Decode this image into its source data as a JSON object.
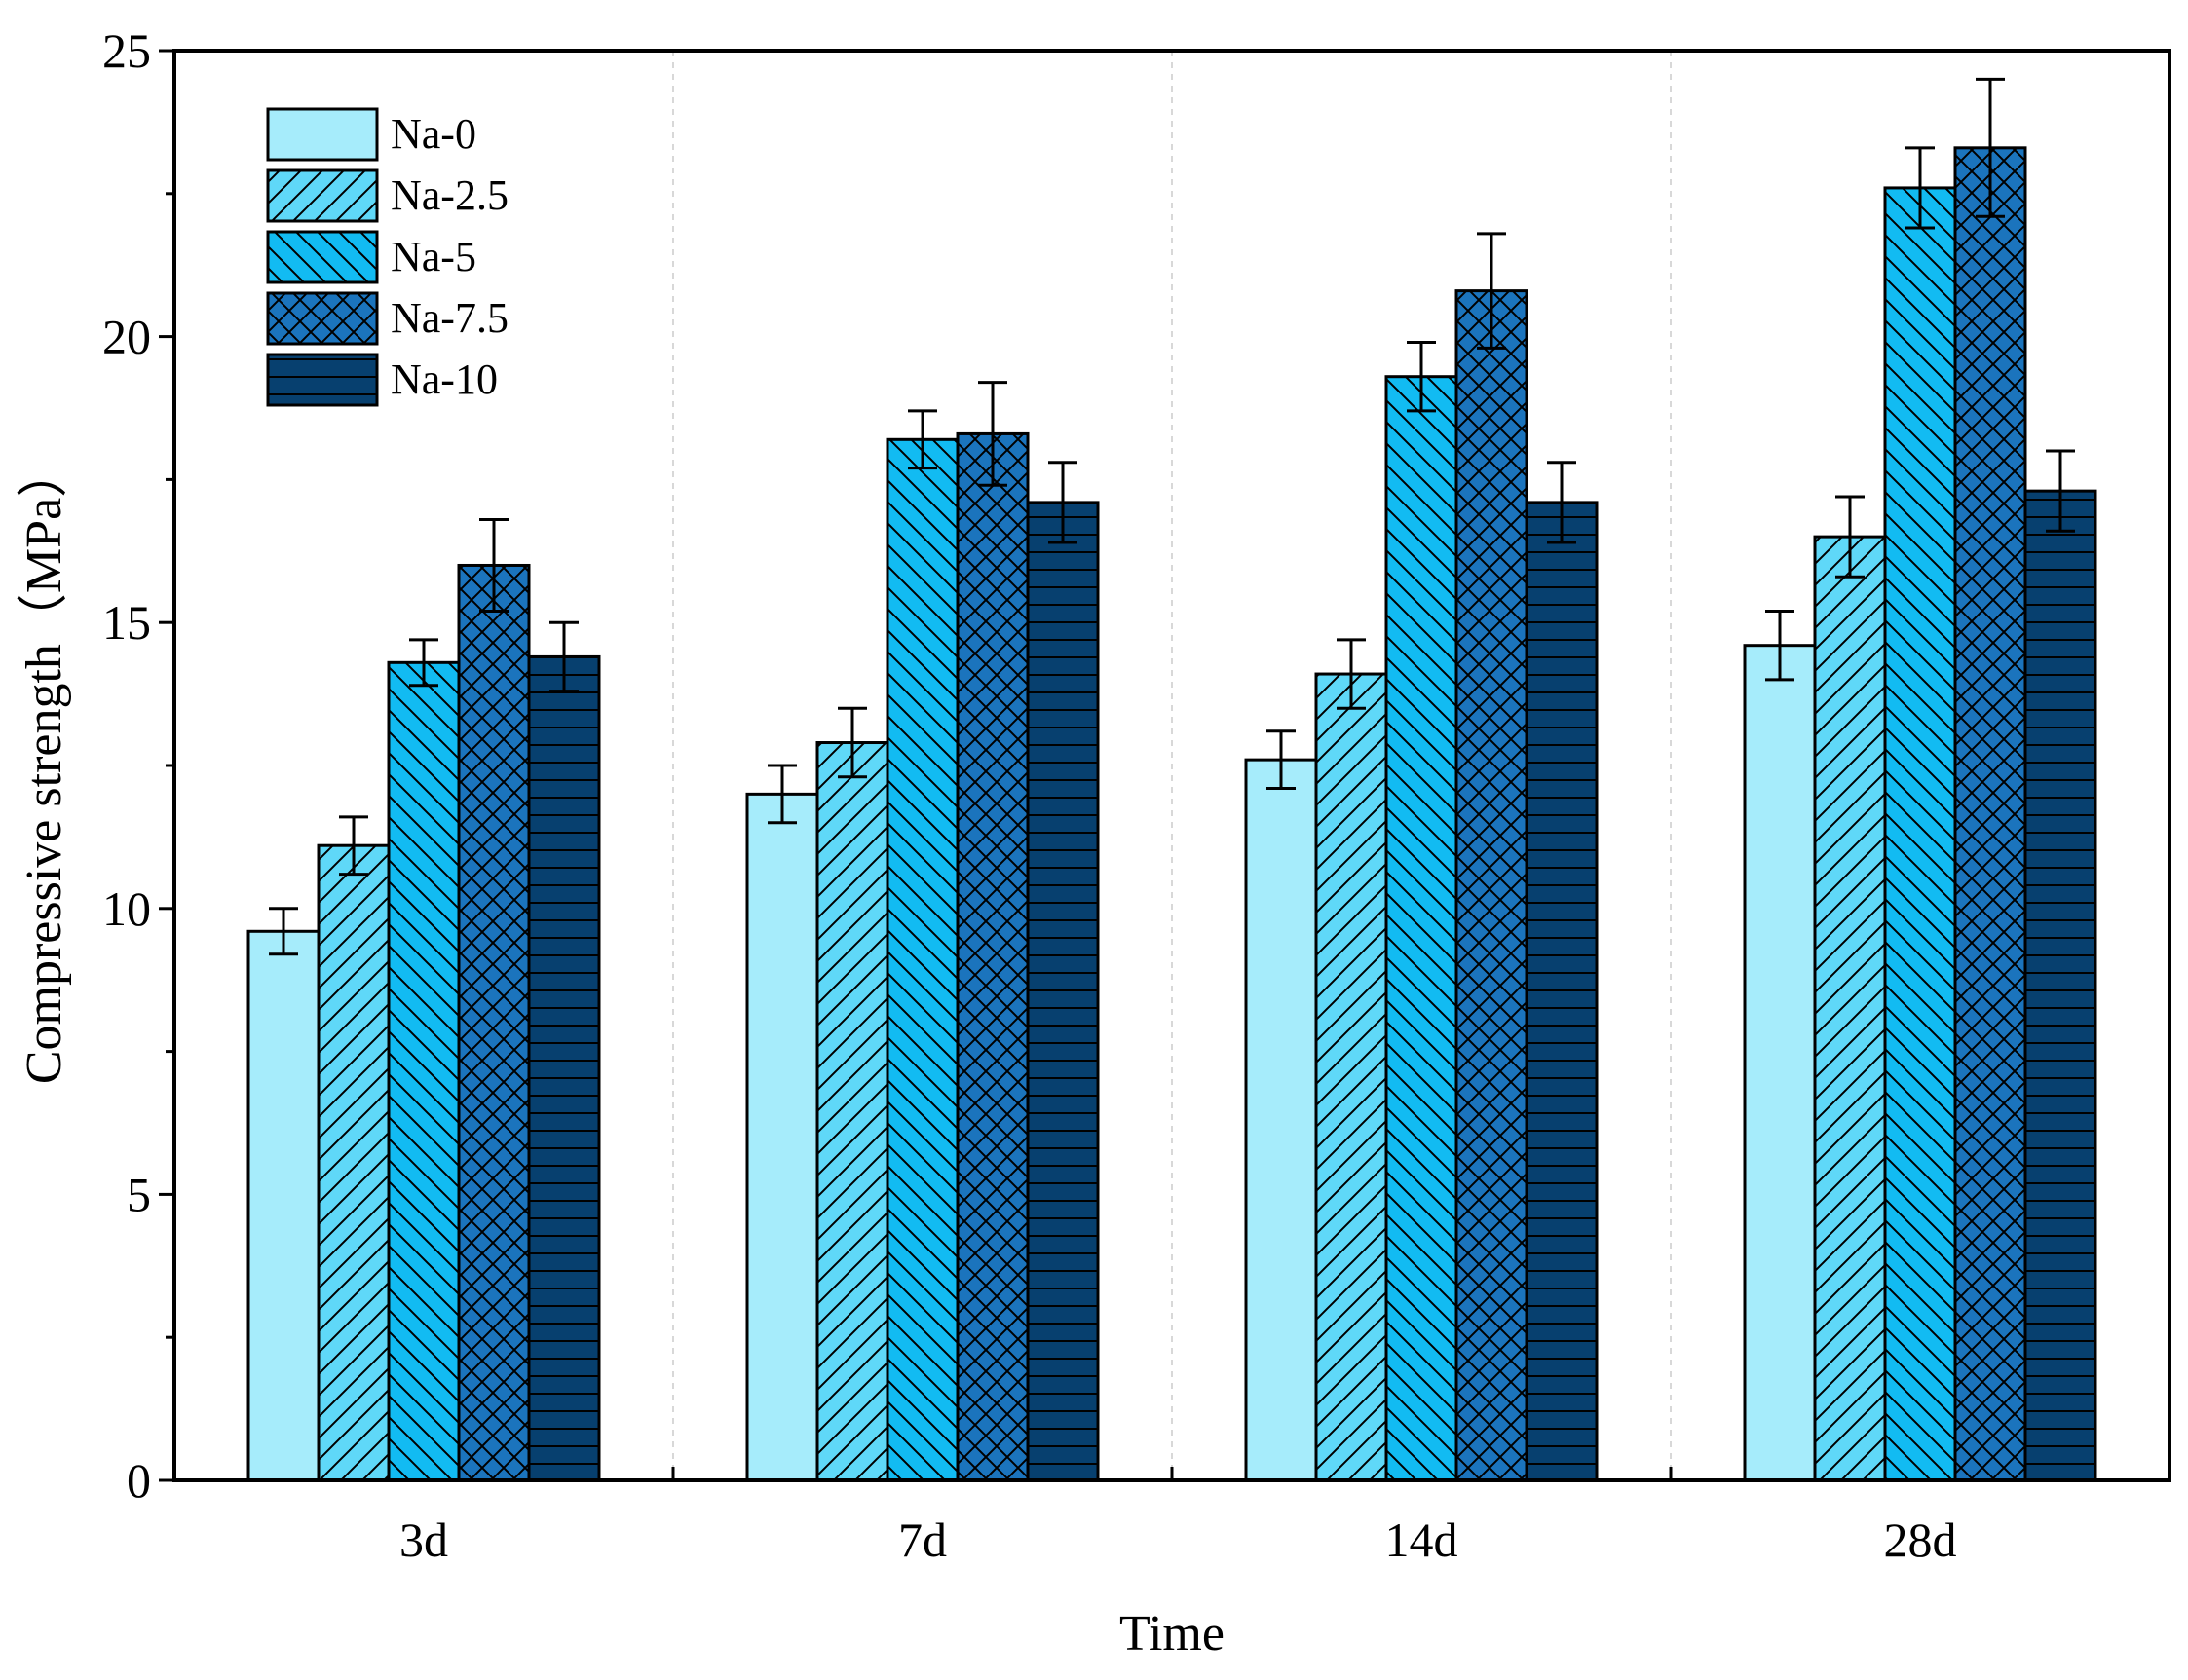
{
  "chart_data": {
    "type": "bar",
    "title": "",
    "xlabel": "Time",
    "ylabel": "Compressive strength（MPa）",
    "categories": [
      "3d",
      "7d",
      "14d",
      "28d"
    ],
    "ylim": [
      0,
      25
    ],
    "yticks": [
      0,
      5,
      10,
      15,
      20,
      25
    ],
    "grid": "vertical dashed separators between groups",
    "legend_position": "top-left",
    "series": [
      {
        "name": "Na-0",
        "values": [
          9.6,
          12.0,
          12.6,
          14.6
        ],
        "errors": [
          0.4,
          0.5,
          0.5,
          0.6
        ],
        "color": "#a6ecfb",
        "pattern": "none"
      },
      {
        "name": "Na-2.5",
        "values": [
          11.1,
          12.9,
          14.1,
          16.5
        ],
        "errors": [
          0.5,
          0.6,
          0.6,
          0.7
        ],
        "color": "#5fd8f8",
        "pattern": "forward-diagonal"
      },
      {
        "name": "Na-5",
        "values": [
          14.3,
          18.2,
          19.3,
          22.6
        ],
        "errors": [
          0.4,
          0.5,
          0.6,
          0.7
        ],
        "color": "#12bbf2",
        "pattern": "back-diagonal"
      },
      {
        "name": "Na-7.5",
        "values": [
          16.0,
          18.3,
          20.8,
          23.3
        ],
        "errors": [
          0.8,
          0.9,
          1.0,
          1.2
        ],
        "color": "#1b74bd",
        "pattern": "crosshatch"
      },
      {
        "name": "Na-10",
        "values": [
          14.4,
          17.1,
          17.1,
          17.3
        ],
        "errors": [
          0.6,
          0.7,
          0.7,
          0.7
        ],
        "color": "#07406f",
        "pattern": "horizontal"
      }
    ]
  }
}
